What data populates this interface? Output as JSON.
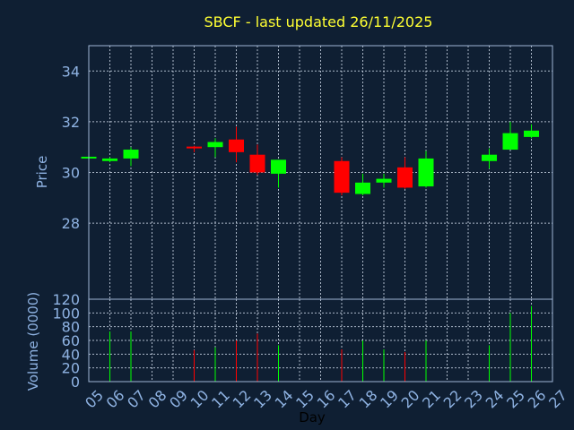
{
  "chart_data": {
    "type": "candlestick",
    "title": "SBCF - last updated 26/11/2025",
    "xlabel": "Day",
    "x_ticks": [
      "05",
      "06",
      "07",
      "08",
      "09",
      "10",
      "11",
      "12",
      "13",
      "14",
      "15",
      "16",
      "17",
      "18",
      "19",
      "20",
      "21",
      "22",
      "23",
      "24",
      "25",
      "26",
      "27"
    ],
    "price_panel": {
      "ylabel": "Price",
      "ylim": [
        25.0,
        35.0
      ],
      "y_ticks": [
        28,
        30,
        32,
        34
      ],
      "grid": true
    },
    "volume_panel": {
      "ylabel": "Volume (0000)",
      "ylim": [
        0,
        120
      ],
      "y_ticks": [
        0,
        20,
        40,
        60,
        80,
        100,
        120
      ],
      "grid": true
    },
    "colors": {
      "up": "#00ff00",
      "down": "#ff0000",
      "background": "#0f1f33",
      "title": "#ffff33",
      "axis_text": "#8fb3e3"
    },
    "candles": [
      {
        "day": 5,
        "open": 30.6,
        "high": 30.65,
        "low": 30.55,
        "close": 30.62,
        "volume": 0
      },
      {
        "day": 6,
        "open": 30.45,
        "high": 30.6,
        "low": 30.4,
        "close": 30.55,
        "volume": 73
      },
      {
        "day": 7,
        "open": 30.55,
        "high": 31.0,
        "low": 30.25,
        "close": 30.9,
        "volume": 73
      },
      {
        "day": 10,
        "open": 31.02,
        "high": 31.05,
        "low": 30.8,
        "close": 30.95,
        "volume": 46
      },
      {
        "day": 11,
        "open": 31.0,
        "high": 31.35,
        "low": 30.6,
        "close": 31.2,
        "volume": 50
      },
      {
        "day": 12,
        "open": 31.3,
        "high": 31.8,
        "low": 30.4,
        "close": 30.8,
        "volume": 60
      },
      {
        "day": 13,
        "open": 30.7,
        "high": 31.1,
        "low": 29.9,
        "close": 30.0,
        "volume": 70
      },
      {
        "day": 14,
        "open": 29.95,
        "high": 30.5,
        "low": 29.4,
        "close": 30.5,
        "volume": 53
      },
      {
        "day": 17,
        "open": 30.45,
        "high": 30.6,
        "low": 29.1,
        "close": 29.2,
        "volume": 47
      },
      {
        "day": 18,
        "open": 29.15,
        "high": 29.95,
        "low": 29.1,
        "close": 29.6,
        "volume": 60
      },
      {
        "day": 19,
        "open": 29.6,
        "high": 29.95,
        "low": 29.4,
        "close": 29.75,
        "volume": 47
      },
      {
        "day": 20,
        "open": 30.2,
        "high": 30.6,
        "low": 29.35,
        "close": 29.4,
        "volume": 43
      },
      {
        "day": 21,
        "open": 29.45,
        "high": 30.85,
        "low": 29.4,
        "close": 30.55,
        "volume": 60
      },
      {
        "day": 24,
        "open": 30.45,
        "high": 30.95,
        "low": 30.15,
        "close": 30.7,
        "volume": 53
      },
      {
        "day": 25,
        "open": 30.9,
        "high": 32.0,
        "low": 30.9,
        "close": 31.55,
        "volume": 100
      },
      {
        "day": 26,
        "open": 31.4,
        "high": 31.9,
        "low": 31.35,
        "close": 31.65,
        "volume": 110
      }
    ]
  }
}
